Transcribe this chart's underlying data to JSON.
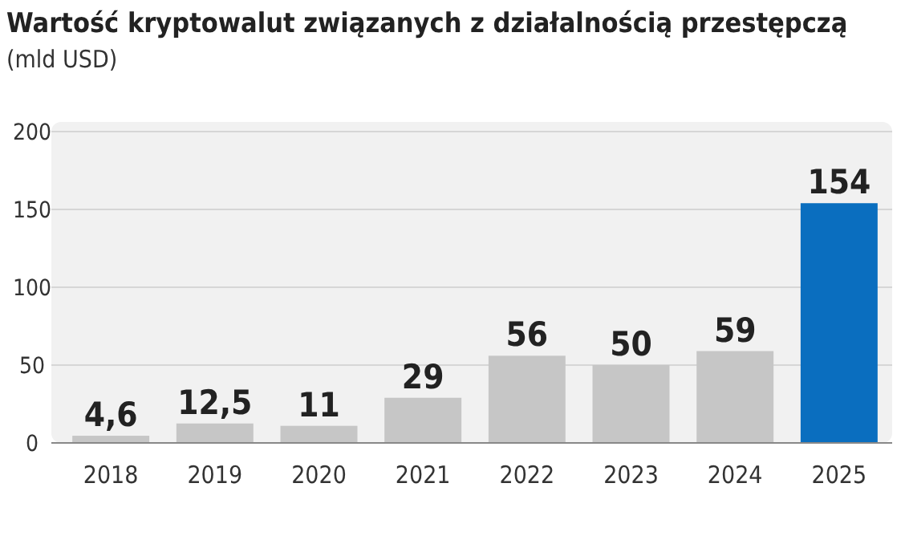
{
  "chart_data": {
    "type": "bar",
    "title": "Wartość kryptowalut związanych z działalnością przestępczą",
    "subtitle": "(mld USD)",
    "categories": [
      "2018",
      "2019",
      "2020",
      "2021",
      "2022",
      "2023",
      "2024",
      "2025"
    ],
    "values": [
      4.6,
      12.5,
      11,
      29,
      56,
      50,
      59,
      154
    ],
    "colors": [
      "#c6c6c6",
      "#c6c6c6",
      "#c6c6c6",
      "#c6c6c6",
      "#c6c6c6",
      "#c6c6c6",
      "#c6c6c6",
      "#0a6ebf"
    ],
    "value_labels": [
      "4,6",
      "12,5",
      "11",
      "29",
      "56",
      "50",
      "59",
      "154"
    ],
    "ylim": [
      0,
      200
    ],
    "yticks": [
      0,
      50,
      100,
      150,
      200
    ],
    "grid": "y"
  }
}
